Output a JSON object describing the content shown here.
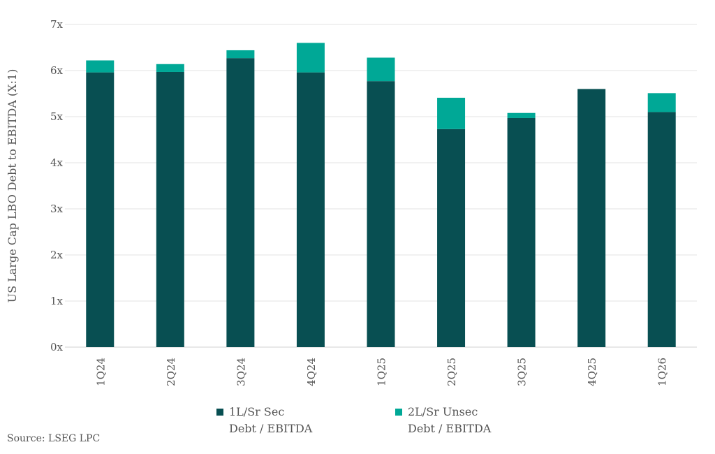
{
  "chart_data": {
    "type": "bar",
    "stacked": true,
    "title": "",
    "xlabel": "",
    "ylabel": "US Large Cap LBO Debt to EBITDA (X:1)",
    "ylim": [
      0,
      7
    ],
    "yticks": [
      "0x",
      "1x",
      "2x",
      "3x",
      "4x",
      "5x",
      "6x",
      "7x"
    ],
    "grid": true,
    "legend_position": "bottom",
    "categories": [
      "1Q24",
      "2Q24",
      "3Q24",
      "4Q24",
      "1Q25",
      "2Q25",
      "3Q25",
      "4Q25",
      "1Q26"
    ],
    "series": [
      {
        "name": "1L/Sr Sec Debt / EBITDA",
        "line1": "1L/Sr Sec",
        "line2": "Debt / EBITDA",
        "color": "#084f52",
        "values": [
          5.96,
          5.97,
          6.27,
          5.96,
          5.77,
          4.73,
          4.97,
          5.6,
          5.1
        ]
      },
      {
        "name": "2L/Sr Unsec Debt / EBITDA",
        "line1": "2L/Sr Unsec",
        "line2": "Debt / EBITDA",
        "color": "#00a896",
        "values": [
          0.26,
          0.17,
          0.17,
          0.64,
          0.51,
          0.68,
          0.11,
          0.0,
          0.41
        ]
      }
    ]
  },
  "source": "Source: LSEG LPC"
}
